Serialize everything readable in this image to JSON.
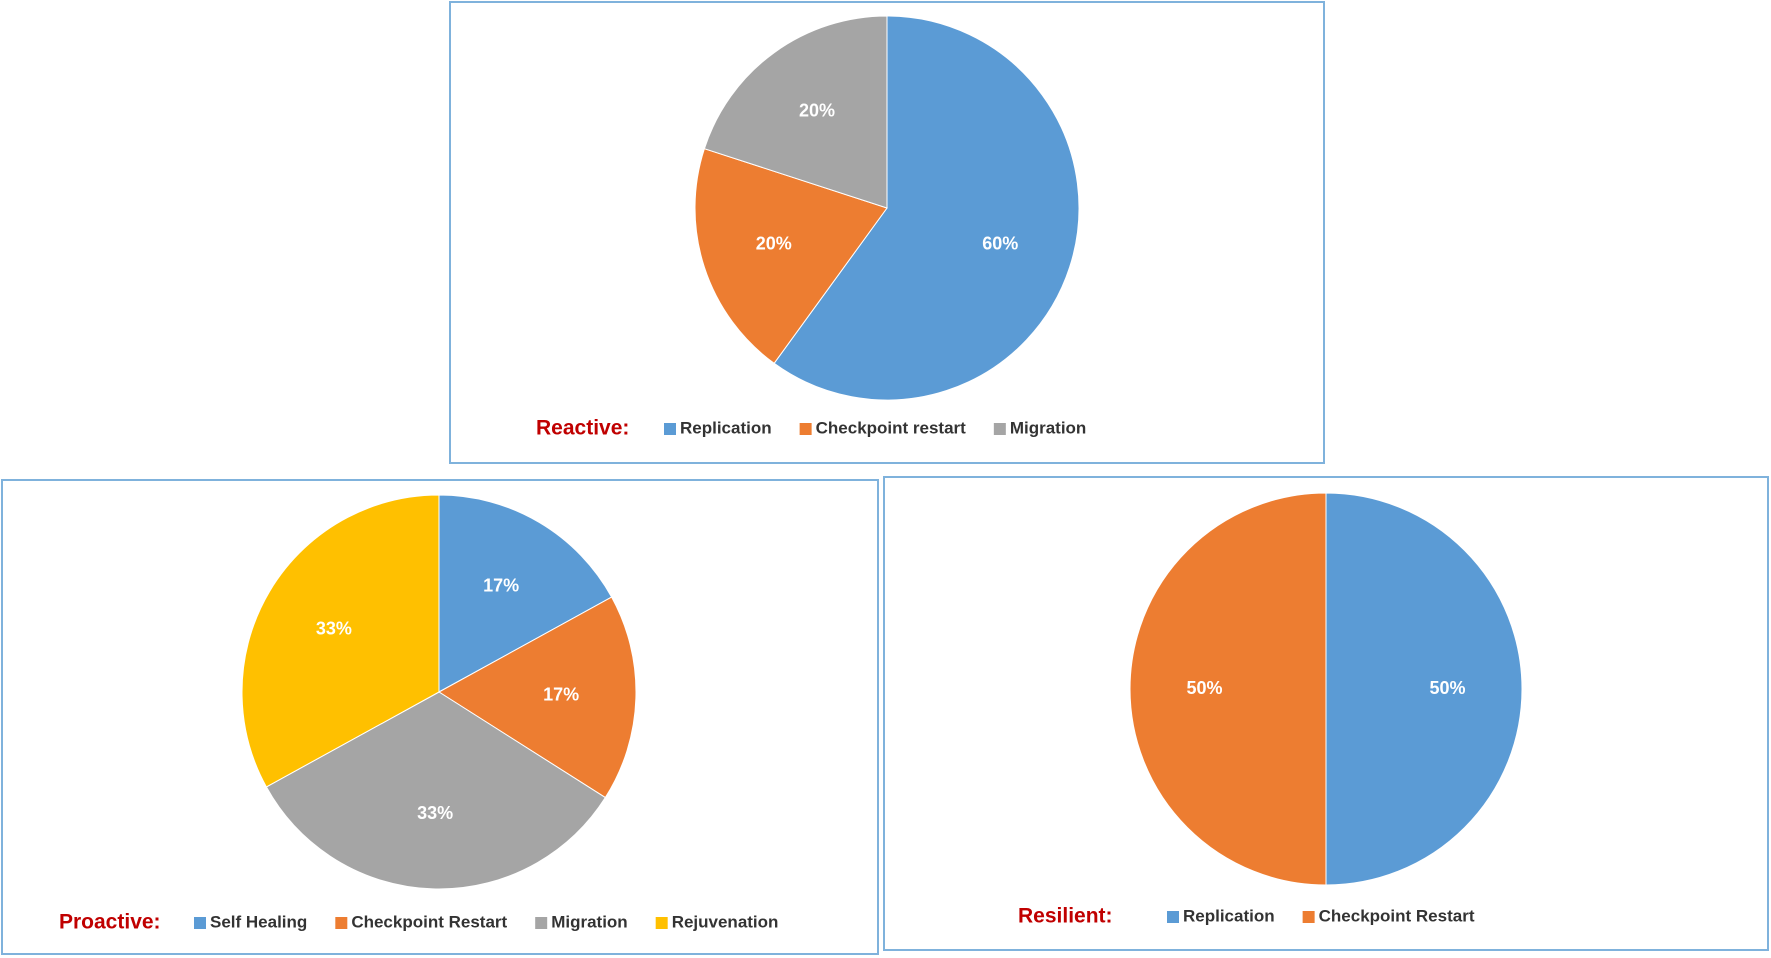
{
  "chart_data": [
    {
      "type": "pie",
      "title": "Reactive:",
      "categories": [
        "Replication",
        "Checkpoint restart",
        "Migration"
      ],
      "values": [
        60,
        20,
        20
      ],
      "value_labels": [
        "60%",
        "20%",
        "20%"
      ],
      "colors": [
        "#5b9bd5",
        "#ed7d31",
        "#a5a5a5"
      ]
    },
    {
      "type": "pie",
      "title": "Proactive:",
      "categories": [
        "Self Healing",
        "Checkpoint Restart",
        "Migration",
        "Rejuvenation"
      ],
      "values": [
        17,
        17,
        33,
        33
      ],
      "value_labels": [
        "17%",
        "17%",
        "33%",
        "33%"
      ],
      "colors": [
        "#5b9bd5",
        "#ed7d31",
        "#a5a5a5",
        "#ffc000"
      ]
    },
    {
      "type": "pie",
      "title": "Resilient:",
      "categories": [
        "Replication",
        "Checkpoint Restart"
      ],
      "values": [
        50,
        50
      ],
      "value_labels": [
        "50%",
        "50%"
      ],
      "colors": [
        "#5b9bd5",
        "#ed7d31"
      ]
    }
  ]
}
